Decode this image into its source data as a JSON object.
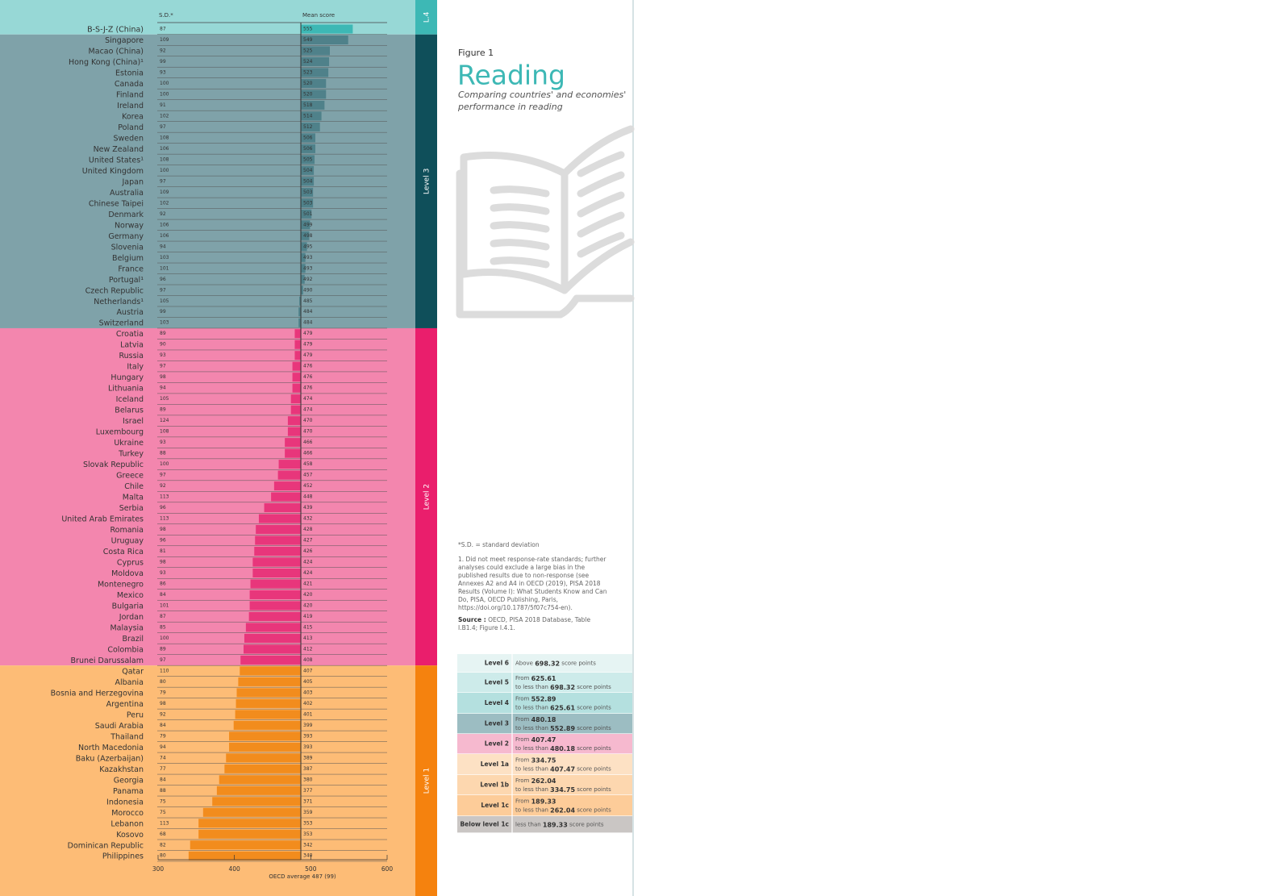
{
  "chart_data": {
    "type": "bar",
    "orientation": "horizontal",
    "sd_label": "S.D.*",
    "value_label": "Mean score",
    "xlabel": "OECD average 487 (99)",
    "baseline": 487,
    "xlim": [
      300,
      600
    ],
    "xticks": [
      300,
      400,
      500,
      600
    ],
    "groups": [
      {
        "label": "L.4",
        "band_color": "#97d8d6",
        "strip_color": "#3db8b5",
        "color": "#3db8b5",
        "categories": [
          "B-S-J-Z (China)"
        ],
        "sd": [
          87
        ],
        "values": [
          555
        ]
      },
      {
        "label": "Level 3",
        "band_color": "#7fa2a9",
        "strip_color": "#0f4f5a",
        "color": "#4f818a",
        "categories": [
          "Singapore",
          "Macao (China)",
          "Hong Kong (China)¹",
          "Estonia",
          "Canada",
          "Finland",
          "Ireland",
          "Korea",
          "Poland",
          "Sweden",
          "New Zealand",
          "United States¹",
          "United Kingdom",
          "Japan",
          "Australia",
          "Chinese Taipei",
          "Denmark",
          "Norway",
          "Germany",
          "Slovenia",
          "Belgium",
          "France",
          "Portugal¹",
          "Czech Republic",
          "Netherlands¹",
          "Austria",
          "Switzerland"
        ],
        "sd": [
          109,
          92,
          99,
          93,
          100,
          100,
          91,
          102,
          97,
          108,
          106,
          108,
          100,
          97,
          109,
          102,
          92,
          106,
          106,
          94,
          103,
          101,
          96,
          97,
          105,
          99,
          103
        ],
        "values": [
          549,
          525,
          524,
          523,
          520,
          520,
          518,
          514,
          512,
          506,
          506,
          505,
          504,
          504,
          503,
          503,
          501,
          499,
          498,
          495,
          493,
          493,
          492,
          490,
          485,
          484,
          484
        ]
      },
      {
        "label": "Level 2",
        "band_color": "#f386ae",
        "strip_color": "#ea1e6c",
        "color": "#e8367b",
        "categories": [
          "Croatia",
          "Latvia",
          "Russia",
          "Italy",
          "Hungary",
          "Lithuania",
          "Iceland",
          "Belarus",
          "Israel",
          "Luxembourg",
          "Ukraine",
          "Turkey",
          "Slovak Republic",
          "Greece",
          "Chile",
          "Malta",
          "Serbia",
          "United Arab Emirates",
          "Romania",
          "Uruguay",
          "Costa Rica",
          "Cyprus",
          "Moldova",
          "Montenegro",
          "Mexico",
          "Bulgaria",
          "Jordan",
          "Malaysia",
          "Brazil",
          "Colombia",
          "Brunei Darussalam"
        ],
        "sd": [
          89,
          90,
          93,
          97,
          98,
          94,
          105,
          89,
          124,
          108,
          93,
          88,
          100,
          97,
          92,
          113,
          96,
          113,
          98,
          96,
          81,
          98,
          93,
          86,
          84,
          101,
          87,
          85,
          100,
          89,
          97
        ],
        "values": [
          479,
          479,
          479,
          476,
          476,
          476,
          474,
          474,
          470,
          470,
          466,
          466,
          458,
          457,
          452,
          448,
          439,
          432,
          428,
          427,
          426,
          424,
          424,
          421,
          420,
          420,
          419,
          415,
          413,
          412,
          408
        ]
      },
      {
        "label": "Level 1",
        "band_color": "#fdbc76",
        "strip_color": "#f5820e",
        "color": "#f28c1d",
        "categories": [
          "Qatar",
          "Albania",
          "Bosnia and Herzegovina",
          "Argentina",
          "Peru",
          "Saudi Arabia",
          "Thailand",
          "North Macedonia",
          "Baku (Azerbaijan)",
          "Kazakhstan",
          "Georgia",
          "Panama",
          "Indonesia",
          "Morocco",
          "Lebanon",
          "Kosovo",
          "Dominican Republic",
          "Philippines"
        ],
        "sd": [
          110,
          80,
          79,
          98,
          92,
          84,
          79,
          94,
          74,
          77,
          84,
          88,
          75,
          75,
          113,
          68,
          82,
          80
        ],
        "values": [
          407,
          405,
          403,
          402,
          401,
          399,
          393,
          393,
          389,
          387,
          380,
          377,
          371,
          359,
          353,
          353,
          342,
          340
        ]
      }
    ]
  },
  "page": {
    "figure": "Figure 1",
    "title": "Reading",
    "subtitle_1": "Comparing countries' and economies'",
    "subtitle_2": "performance in reading",
    "sd_note": "*S.D. = standard deviation",
    "note_1": "1. Did not meet response-rate standards; further analyses could exclude a large bias in the published results due to non-response (see Annexes A2 and A4 in OECD (2019), PISA 2018 Results (Volume I): What Students Know and Can Do, PISA, OECD Publishing, Paris, https://doi.org/10.1787/5f07c754-en).",
    "source_label": "Source :",
    "source_text": "OECD, PISA 2018 Database, Table I.B1.4; Figure I.4.1.",
    "levels_table": [
      {
        "level": "Level 6",
        "color": "#e6f4f3",
        "lines": [
          [
            "Above ",
            "698.32",
            " score points"
          ]
        ]
      },
      {
        "level": "Level 5",
        "color": "#cdebea",
        "lines": [
          [
            "From ",
            "625.61"
          ],
          [
            "to less than ",
            "698.32",
            " score points"
          ]
        ]
      },
      {
        "level": "Level 4",
        "color": "#b4e0df",
        "lines": [
          [
            "From ",
            "552.89"
          ],
          [
            "to less than ",
            "625.61",
            " score points"
          ]
        ]
      },
      {
        "level": "Level 3",
        "color": "#9cbdc2",
        "lines": [
          [
            "From ",
            "480.18"
          ],
          [
            "to less than ",
            "552.89",
            " score points"
          ]
        ]
      },
      {
        "level": "Level 2",
        "color": "#f6b9cf",
        "lines": [
          [
            "From ",
            "407.47"
          ],
          [
            "to less than ",
            "480.18",
            " score points"
          ]
        ]
      },
      {
        "level": "Level 1a",
        "color": "#fde1c4",
        "lines": [
          [
            "From ",
            "334.75"
          ],
          [
            "to less than ",
            "407.47",
            " score points"
          ]
        ]
      },
      {
        "level": "Level 1b",
        "color": "#fdd7af",
        "lines": [
          [
            "From ",
            "262.04"
          ],
          [
            "to less than ",
            "334.75",
            " score points"
          ]
        ]
      },
      {
        "level": "Level 1c",
        "color": "#fdcc99",
        "lines": [
          [
            "From ",
            "189.33"
          ],
          [
            "to less than ",
            "262.04",
            " score points"
          ]
        ]
      },
      {
        "level": "Below level 1c",
        "color": "#cac6c4",
        "lines": [
          [
            "less than ",
            "189.33",
            " score points"
          ]
        ]
      }
    ]
  }
}
